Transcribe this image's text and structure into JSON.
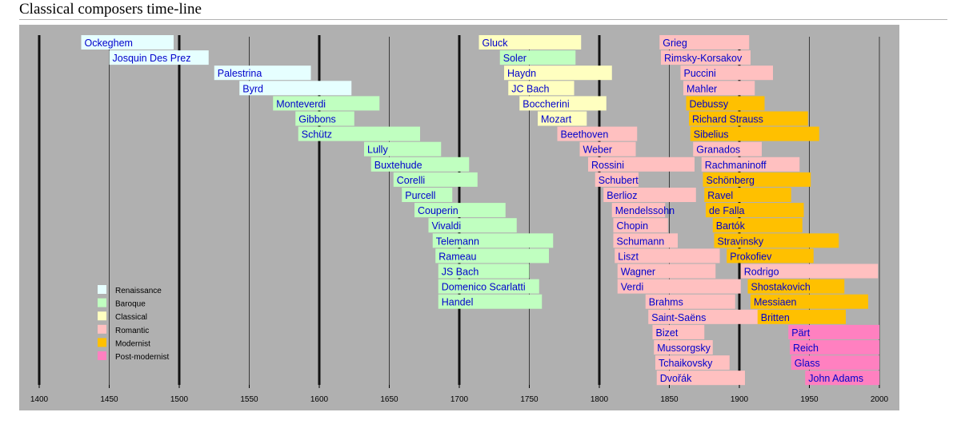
{
  "page_title": "Classical composers time-line",
  "chart_data": {
    "type": "timeline",
    "title": "Classical composers time-line",
    "xlim": [
      1400,
      2000
    ],
    "xticks": [
      1400,
      1450,
      1500,
      1550,
      1600,
      1650,
      1700,
      1750,
      1800,
      1850,
      1900,
      1950,
      2000
    ],
    "major_gridlines": [
      1400,
      1500,
      1600,
      1700,
      1800,
      1900
    ],
    "legend_placement": "lower-left",
    "periods": [
      {
        "name": "Renaissance",
        "color": "#e6ffff"
      },
      {
        "name": "Baroque",
        "color": "#c0ffc0"
      },
      {
        "name": "Classical",
        "color": "#ffffc0"
      },
      {
        "name": "Romantic",
        "color": "#ffc0c0"
      },
      {
        "name": "Modernist",
        "color": "#ffc000"
      },
      {
        "name": "Post-modernist",
        "color": "#ff80c0"
      }
    ],
    "composers": [
      {
        "name": "Ockeghem",
        "start": 1430,
        "end": 1496,
        "period": "Renaissance",
        "row": 0
      },
      {
        "name": "Josquin Des Prez",
        "start": 1450,
        "end": 1521,
        "period": "Renaissance",
        "row": 1
      },
      {
        "name": "Palestrina",
        "start": 1525,
        "end": 1594,
        "period": "Renaissance",
        "row": 2
      },
      {
        "name": "Byrd",
        "start": 1543,
        "end": 1623,
        "period": "Renaissance",
        "row": 3
      },
      {
        "name": "Monteverdi",
        "start": 1567,
        "end": 1643,
        "period": "Baroque",
        "row": 4
      },
      {
        "name": "Gibbons",
        "start": 1583,
        "end": 1625,
        "period": "Baroque",
        "row": 5
      },
      {
        "name": "Schütz",
        "start": 1585,
        "end": 1672,
        "period": "Baroque",
        "row": 6
      },
      {
        "name": "Lully",
        "start": 1632,
        "end": 1687,
        "period": "Baroque",
        "row": 7
      },
      {
        "name": "Buxtehude",
        "start": 1637,
        "end": 1707,
        "period": "Baroque",
        "row": 8
      },
      {
        "name": "Corelli",
        "start": 1653,
        "end": 1713,
        "period": "Baroque",
        "row": 9
      },
      {
        "name": "Purcell",
        "start": 1659,
        "end": 1695,
        "period": "Baroque",
        "row": 10
      },
      {
        "name": "Couperin",
        "start": 1668,
        "end": 1733,
        "period": "Baroque",
        "row": 11
      },
      {
        "name": "Vivaldi",
        "start": 1678,
        "end": 1741,
        "period": "Baroque",
        "row": 12
      },
      {
        "name": "Telemann",
        "start": 1681,
        "end": 1767,
        "period": "Baroque",
        "row": 13
      },
      {
        "name": "Rameau",
        "start": 1683,
        "end": 1764,
        "period": "Baroque",
        "row": 14
      },
      {
        "name": "JS Bach",
        "start": 1685,
        "end": 1750,
        "period": "Baroque",
        "row": 15
      },
      {
        "name": "Domenico Scarlatti",
        "start": 1685,
        "end": 1757,
        "period": "Baroque",
        "row": 16
      },
      {
        "name": "Handel",
        "start": 1685,
        "end": 1759,
        "period": "Baroque",
        "row": 17
      },
      {
        "name": "Gluck",
        "start": 1714,
        "end": 1787,
        "period": "Classical",
        "row": 0
      },
      {
        "name": "Soler",
        "start": 1729,
        "end": 1783,
        "period": "Baroque",
        "row": 1
      },
      {
        "name": "Haydn",
        "start": 1732,
        "end": 1809,
        "period": "Classical",
        "row": 2
      },
      {
        "name": "JC Bach",
        "start": 1735,
        "end": 1782,
        "period": "Classical",
        "row": 3
      },
      {
        "name": "Boccherini",
        "start": 1743,
        "end": 1805,
        "period": "Classical",
        "row": 4
      },
      {
        "name": "Mozart",
        "start": 1756,
        "end": 1791,
        "period": "Classical",
        "row": 5
      },
      {
        "name": "Beethoven",
        "start": 1770,
        "end": 1827,
        "period": "Romantic",
        "row": 6
      },
      {
        "name": "Weber",
        "start": 1786,
        "end": 1826,
        "period": "Romantic",
        "row": 7
      },
      {
        "name": "Rossini",
        "start": 1792,
        "end": 1868,
        "period": "Romantic",
        "row": 8
      },
      {
        "name": "Schubert",
        "start": 1797,
        "end": 1828,
        "period": "Romantic",
        "row": 9
      },
      {
        "name": "Berlioz",
        "start": 1803,
        "end": 1869,
        "period": "Romantic",
        "row": 10
      },
      {
        "name": "Mendelssohn",
        "start": 1809,
        "end": 1847,
        "period": "Romantic",
        "row": 11
      },
      {
        "name": "Chopin",
        "start": 1810,
        "end": 1849,
        "period": "Romantic",
        "row": 12
      },
      {
        "name": "Schumann",
        "start": 1810,
        "end": 1856,
        "period": "Romantic",
        "row": 13
      },
      {
        "name": "Liszt",
        "start": 1811,
        "end": 1886,
        "period": "Romantic",
        "row": 14
      },
      {
        "name": "Wagner",
        "start": 1813,
        "end": 1883,
        "period": "Romantic",
        "row": 15
      },
      {
        "name": "Verdi",
        "start": 1813,
        "end": 1901,
        "period": "Romantic",
        "row": 16
      },
      {
        "name": "Brahms",
        "start": 1833,
        "end": 1897,
        "period": "Romantic",
        "row": 17
      },
      {
        "name": "Saint-Saëns",
        "start": 1835,
        "end": 1921,
        "period": "Romantic",
        "row": 18
      },
      {
        "name": "Bizet",
        "start": 1838,
        "end": 1875,
        "period": "Romantic",
        "row": 19
      },
      {
        "name": "Mussorgsky",
        "start": 1839,
        "end": 1881,
        "period": "Romantic",
        "row": 20
      },
      {
        "name": "Tchaikovsky",
        "start": 1840,
        "end": 1893,
        "period": "Romantic",
        "row": 21
      },
      {
        "name": "Dvořák",
        "start": 1841,
        "end": 1904,
        "period": "Romantic",
        "row": 22
      },
      {
        "name": "Grieg",
        "start": 1843,
        "end": 1907,
        "period": "Romantic",
        "row": 0
      },
      {
        "name": "Rimsky-Korsakov",
        "start": 1844,
        "end": 1908,
        "period": "Romantic",
        "row": 1
      },
      {
        "name": "Puccini",
        "start": 1858,
        "end": 1924,
        "period": "Romantic",
        "row": 2
      },
      {
        "name": "Mahler",
        "start": 1860,
        "end": 1911,
        "period": "Romantic",
        "row": 3
      },
      {
        "name": "Debussy",
        "start": 1862,
        "end": 1918,
        "period": "Modernist",
        "row": 4
      },
      {
        "name": "Richard Strauss",
        "start": 1864,
        "end": 1949,
        "period": "Modernist",
        "row": 5
      },
      {
        "name": "Sibelius",
        "start": 1865,
        "end": 1957,
        "period": "Modernist",
        "row": 6
      },
      {
        "name": "Granados",
        "start": 1867,
        "end": 1916,
        "period": "Romantic",
        "row": 7
      },
      {
        "name": "Rachmaninoff",
        "start": 1873,
        "end": 1943,
        "period": "Romantic",
        "row": 8
      },
      {
        "name": "Schönberg",
        "start": 1874,
        "end": 1951,
        "period": "Modernist",
        "row": 9
      },
      {
        "name": "Ravel",
        "start": 1875,
        "end": 1937,
        "period": "Modernist",
        "row": 10
      },
      {
        "name": "de Falla",
        "start": 1876,
        "end": 1946,
        "period": "Modernist",
        "row": 11
      },
      {
        "name": "Bartók",
        "start": 1881,
        "end": 1945,
        "period": "Modernist",
        "row": 12
      },
      {
        "name": "Stravinsky",
        "start": 1882,
        "end": 1971,
        "period": "Modernist",
        "row": 13
      },
      {
        "name": "Prokofiev",
        "start": 1891,
        "end": 1953,
        "period": "Modernist",
        "row": 14
      },
      {
        "name": "Rodrigo",
        "start": 1901,
        "end": 1999,
        "period": "Romantic",
        "row": 15
      },
      {
        "name": "Shostakovich",
        "start": 1906,
        "end": 1975,
        "period": "Modernist",
        "row": 16
      },
      {
        "name": "Messiaen",
        "start": 1908,
        "end": 1992,
        "period": "Modernist",
        "row": 17
      },
      {
        "name": "Britten",
        "start": 1913,
        "end": 1976,
        "period": "Modernist",
        "row": 18
      },
      {
        "name": "Pärt",
        "start": 1935,
        "end": 2000,
        "period": "Post-modernist",
        "row": 19
      },
      {
        "name": "Reich",
        "start": 1936,
        "end": 2000,
        "period": "Post-modernist",
        "row": 20
      },
      {
        "name": "Glass",
        "start": 1937,
        "end": 2000,
        "period": "Post-modernist",
        "row": 21
      },
      {
        "name": "John Adams",
        "start": 1947,
        "end": 2000,
        "period": "Post-modernist",
        "row": 22
      }
    ]
  }
}
